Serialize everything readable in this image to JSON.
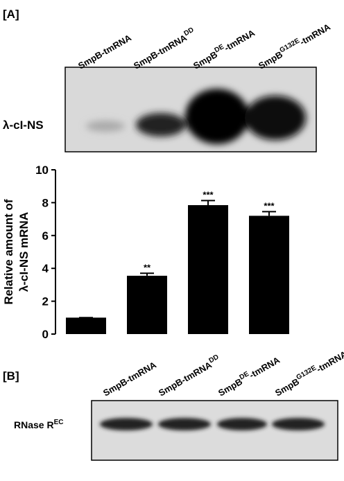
{
  "panel_a_label": "[A]",
  "blot_a": {
    "band_label": "λ-cI-NS",
    "lanes": [
      {
        "text": "SmpB-tmRNA"
      },
      {
        "text": "SmpB-tmRNA",
        "sup": "DD"
      },
      {
        "text": "SmpB",
        "sup": "DE",
        "after": "-tmRNA"
      },
      {
        "text": "SmpB",
        "sup": "G132E",
        "after": "-tmRNA"
      }
    ]
  },
  "chart_data": {
    "type": "bar",
    "ylabel": [
      "Relative amount of",
      "λ-cI-NS  mRNA"
    ],
    "categories": [
      null,
      null,
      null,
      null
    ],
    "values": [
      1,
      3.55,
      7.85,
      7.2
    ],
    "errors": [
      0,
      0.15,
      0.28,
      0.25
    ],
    "annotations": [
      null,
      "**",
      "***",
      "***"
    ],
    "color": "#000000",
    "ylim": [
      0,
      10
    ],
    "yticks": [
      0,
      2,
      4,
      6,
      8,
      10
    ]
  },
  "panel_b_label": "[B]",
  "blot_b": {
    "band_label": {
      "text": "RNase R",
      "sup": "EC"
    },
    "lanes": [
      {
        "text": "SmpB-tmRNA"
      },
      {
        "text": "SmpB-tmRNA",
        "sup": "DD"
      },
      {
        "text": "SmpB",
        "sup": "DE",
        "after": "-tmRNA"
      },
      {
        "text": "SmpB",
        "sup": "G132E",
        "after": "-tmRNA"
      }
    ]
  }
}
